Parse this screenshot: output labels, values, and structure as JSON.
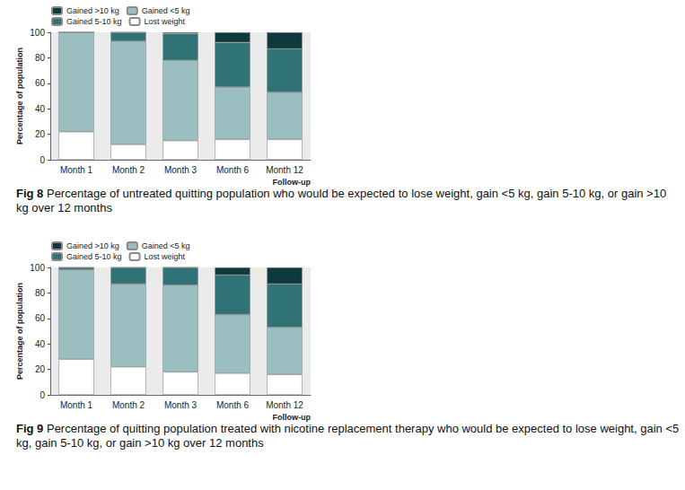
{
  "chart_data": [
    {
      "type": "bar",
      "stacked": true,
      "grid": false,
      "legend": "top-left",
      "title": "Fig 8",
      "subtitle": "Percentage of untreated quitting population who would be expected to lose weight, gain <5 kg, gain 5-10 kg, or gain >10 kg over 12 months",
      "xlabel": "Follow-up",
      "ylabel": "Percentage of population",
      "categories": [
        "Month 1",
        "Month 2",
        "Month 3",
        "Month 6",
        "Month 12"
      ],
      "ylim": [
        0,
        100
      ],
      "yticks": [
        0,
        20,
        40,
        60,
        80,
        100
      ],
      "series": [
        {
          "name": "Lost weight",
          "color": "#ffffff",
          "values": [
            22,
            12,
            15,
            16,
            16
          ]
        },
        {
          "name": "Gained <5 kg",
          "color": "#9cbfc1",
          "values": [
            78,
            81,
            63,
            41,
            37
          ]
        },
        {
          "name": "Gained 5-10 kg",
          "color": "#2f7377",
          "values": [
            0,
            7,
            21,
            35,
            34
          ]
        },
        {
          "name": "Gained >10 kg",
          "color": "#0e3a3d",
          "values": [
            0,
            0,
            1,
            8,
            13
          ]
        }
      ]
    },
    {
      "type": "bar",
      "stacked": true,
      "grid": false,
      "legend": "top-left",
      "title": "Fig 9",
      "subtitle": "Percentage of quitting population treated with nicotine replacement therapy who would be expected to lose weight, gain <5 kg, gain 5-10 kg, or gain >10 kg over 12 months",
      "xlabel": "Follow-up",
      "ylabel": "Percentage of population",
      "categories": [
        "Month 1",
        "Month 2",
        "Month 3",
        "Month 6",
        "Month 12"
      ],
      "ylim": [
        0,
        100
      ],
      "yticks": [
        0,
        20,
        40,
        60,
        80,
        100
      ],
      "series": [
        {
          "name": "Lost weight",
          "color": "#ffffff",
          "values": [
            28,
            22,
            18,
            17,
            16
          ]
        },
        {
          "name": "Gained <5 kg",
          "color": "#9cbfc1",
          "values": [
            70,
            65,
            68,
            46,
            37
          ]
        },
        {
          "name": "Gained 5-10 kg",
          "color": "#2f7377",
          "values": [
            2,
            13,
            14,
            31,
            34
          ]
        },
        {
          "name": "Gained >10 kg",
          "color": "#0e3a3d",
          "values": [
            0,
            0,
            0,
            6,
            13
          ]
        }
      ]
    }
  ]
}
